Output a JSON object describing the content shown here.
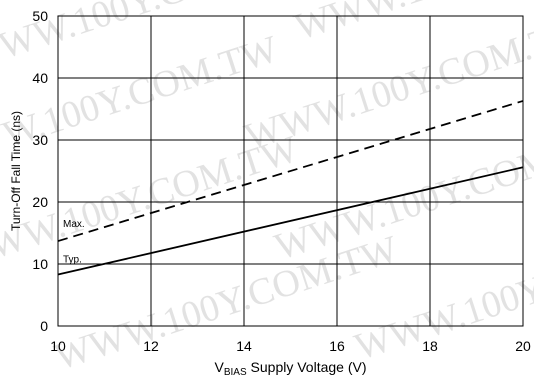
{
  "watermark": "WWW.100Y.COM.TW",
  "chart_data": {
    "type": "line",
    "xlabel_main": "V",
    "xlabel_sub": "BIAS",
    "xlabel_rest": " Supply Voltage (V)",
    "ylabel": "Turn-Off Fall Time (ns)",
    "xlim": [
      10,
      20
    ],
    "ylim": [
      0,
      50
    ],
    "x_ticks": [
      "10",
      "12",
      "14",
      "16",
      "18",
      "20"
    ],
    "y_ticks": [
      "0",
      "10",
      "20",
      "30",
      "40",
      "50"
    ],
    "grid": true,
    "series": [
      {
        "name": "Max.",
        "x": [
          10,
          20
        ],
        "y": [
          13.7,
          36.3
        ],
        "style": "dashed",
        "color": "#000000"
      },
      {
        "name": "Typ.",
        "x": [
          10,
          20
        ],
        "y": [
          8.3,
          25.6
        ],
        "style": "solid",
        "color": "#000000"
      }
    ]
  }
}
